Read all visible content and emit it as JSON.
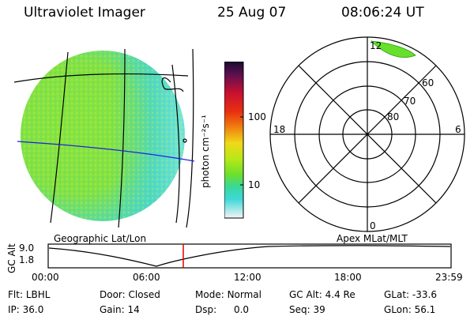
{
  "header": {
    "title": "Ultraviolet Imager",
    "date": "25 Aug 07",
    "time": "08:06:24 UT"
  },
  "colorbar": {
    "unit_label": "photon cm⁻²s⁻¹",
    "ticks": [
      "100",
      "10"
    ]
  },
  "map_labels": {
    "geographic": "Geographic Lat/Lon",
    "apex": "Apex MLat/MLT"
  },
  "polar": {
    "mlt_labels": [
      "12",
      "18",
      "6",
      "0"
    ],
    "lat_labels": [
      "60",
      "70",
      "80"
    ]
  },
  "altitude_plot": {
    "axis_label": "GC Alt",
    "y_ticks": [
      "9.0",
      "1.8"
    ],
    "x_ticks": [
      "00:00",
      "06:00",
      "12:00",
      "18:00",
      "23:59"
    ],
    "marker_color": "#e00000"
  },
  "info": {
    "row1": [
      {
        "label": "Flt:",
        "value": "LBHL"
      },
      {
        "label": "Door:",
        "value": "Closed"
      },
      {
        "label": "Mode:",
        "value": "Normal"
      },
      {
        "label": "GC Alt:",
        "value": "4.4 Re"
      },
      {
        "label": "GLat:",
        "value": "-33.6"
      }
    ],
    "row2": [
      {
        "label": "IP:",
        "value": "36.0"
      },
      {
        "label": "Gain:",
        "value": "14"
      },
      {
        "label": "Dsp:",
        "value": "0.0"
      },
      {
        "label": "Seq:",
        "value": "39"
      },
      {
        "label": "GLon:",
        "value": "56.1"
      }
    ]
  },
  "colors": {
    "disk_green": "#7ee23a",
    "disk_cyan": "#3fd8c8",
    "polar_green": "#66e02a"
  }
}
